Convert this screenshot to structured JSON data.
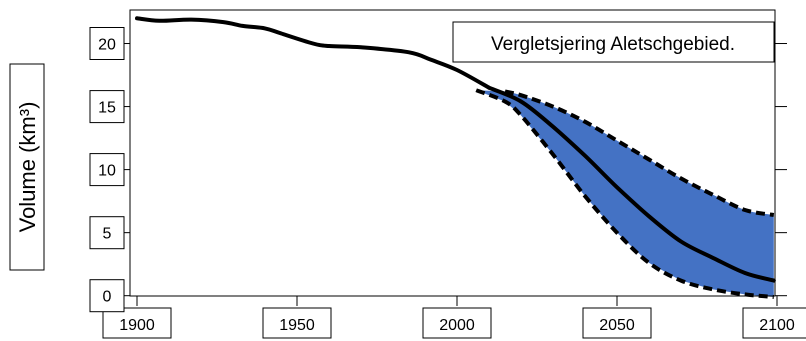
{
  "chart_data": {
    "type": "line",
    "title": "Vergletsjering Aletschgebied.",
    "ylabel": "Volume (km³)",
    "xlabel": "",
    "xlim": [
      1900,
      2100
    ],
    "ylim": [
      -0.5,
      22.5
    ],
    "x_ticks": [
      1900,
      1950,
      2000,
      2050,
      2100
    ],
    "y_ticks": [
      0,
      5,
      10,
      15,
      20
    ],
    "grid": false,
    "band_color": "#4472c4",
    "line_color": "#000000",
    "series": [
      {
        "role": "observed",
        "style": "solid",
        "x": [
          1900,
          1907,
          1917,
          1927,
          1933,
          1940,
          1945,
          1955,
          1960,
          1970,
          1985,
          1992,
          2000,
          2010
        ],
        "y": [
          22.0,
          21.8,
          21.9,
          21.7,
          21.4,
          21.2,
          20.8,
          20.0,
          19.8,
          19.7,
          19.3,
          18.7,
          17.9,
          16.5
        ]
      },
      {
        "role": "projection-central",
        "style": "solid",
        "x": [
          2010,
          2020,
          2030,
          2040,
          2050,
          2060,
          2070,
          2080,
          2090,
          2099
        ],
        "y": [
          16.5,
          15.4,
          13.4,
          11.1,
          8.6,
          6.3,
          4.3,
          3.0,
          1.8,
          1.2
        ]
      },
      {
        "role": "projection-upper",
        "style": "dashed",
        "x": [
          2015,
          2020,
          2030,
          2040,
          2050,
          2060,
          2070,
          2080,
          2090,
          2099
        ],
        "y": [
          16.2,
          15.9,
          15.0,
          13.8,
          12.3,
          10.8,
          9.3,
          8.0,
          6.8,
          6.4
        ]
      },
      {
        "role": "projection-lower",
        "style": "dashed",
        "x": [
          2006,
          2015,
          2020,
          2030,
          2040,
          2050,
          2060,
          2070,
          2080,
          2090,
          2099
        ],
        "y": [
          16.3,
          15.4,
          14.3,
          11.2,
          7.9,
          5.0,
          2.6,
          1.2,
          0.5,
          0.1,
          -0.1
        ]
      }
    ]
  }
}
